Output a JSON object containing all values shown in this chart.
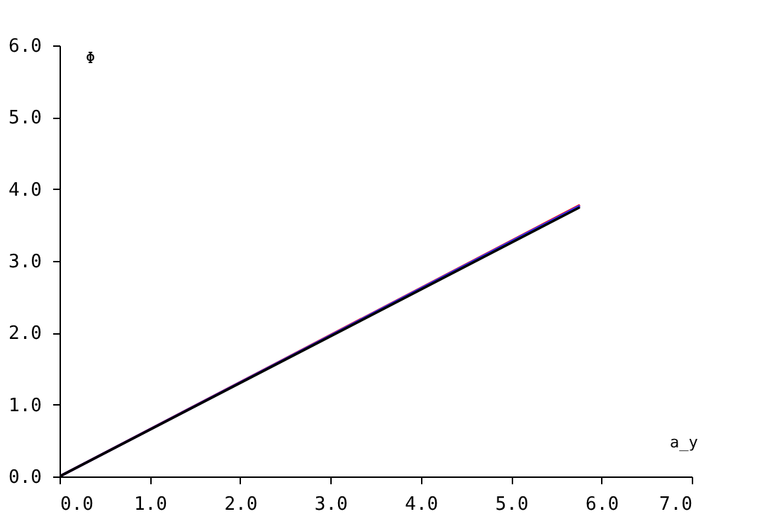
{
  "chart_data": {
    "type": "line",
    "xlabel": "a_y",
    "ylabel": "Φ",
    "x": [
      0,
      5.75
    ],
    "series": [
      {
        "color": "#ff0000",
        "values": [
          0,
          3.77
        ]
      },
      {
        "color": "#3333ff",
        "values": [
          0,
          3.76
        ]
      },
      {
        "color": "#000000",
        "values": [
          0,
          3.74
        ]
      }
    ],
    "xlim": [
      0,
      7
    ],
    "ylim": [
      0,
      6
    ],
    "xticks": [
      {
        "value": 0,
        "label": "0.0"
      },
      {
        "value": 1,
        "label": "1.0"
      },
      {
        "value": 2,
        "label": "2.0"
      },
      {
        "value": 3,
        "label": "3.0"
      },
      {
        "value": 4,
        "label": "4.0"
      },
      {
        "value": 5,
        "label": "5.0"
      },
      {
        "value": 6,
        "label": "6.0"
      },
      {
        "value": 7,
        "label": "7.0"
      }
    ],
    "yticks": [
      {
        "value": 0,
        "label": "0.0"
      },
      {
        "value": 1,
        "label": "1.0"
      },
      {
        "value": 2,
        "label": "2.0"
      },
      {
        "value": 3,
        "label": "3.0"
      },
      {
        "value": 4,
        "label": "4.0"
      },
      {
        "value": 5,
        "label": "5.0"
      },
      {
        "value": 6,
        "label": "6.0"
      }
    ],
    "grid": false,
    "marker": "none",
    "line_style": "solid"
  }
}
